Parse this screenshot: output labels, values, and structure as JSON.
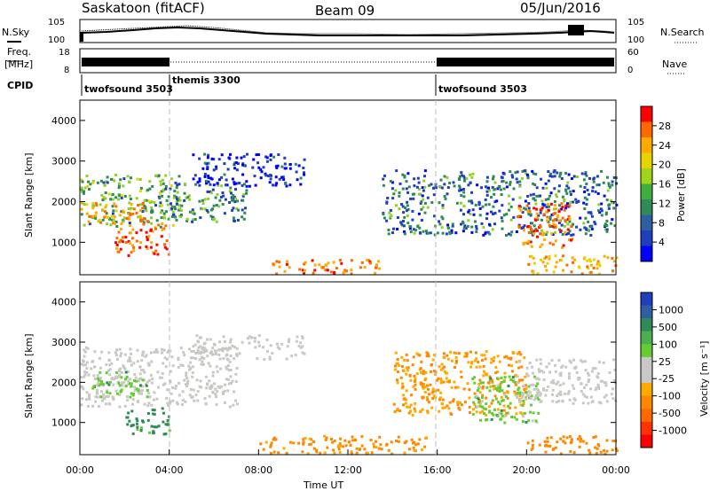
{
  "header": {
    "site": "Saskatoon (fitACF)",
    "beam": "Beam 09",
    "date": "05/Jun/2016"
  },
  "left_labels": {
    "nsky": "N.Sky",
    "freq_line1": "Freq.",
    "freq_line2": "[MHz]",
    "cpid": "CPID"
  },
  "right_labels": {
    "nsearch": "N.Search",
    "nave": "Nave"
  },
  "noise_panel": {
    "left_ticks": [
      "10^5",
      "10^0"
    ],
    "right_ticks": [
      "10^5",
      "10^0"
    ]
  },
  "freq_panel": {
    "left_ticks": [
      "18",
      "8"
    ],
    "right_ticks": [
      "60",
      "0"
    ]
  },
  "cpid_segments": [
    {
      "name": "twofsound 3503",
      "start_hour": 0,
      "end_hour": 4
    },
    {
      "name": "themis 3300",
      "start_hour": 4,
      "end_hour": 16
    },
    {
      "name": "twofsound 3503",
      "start_hour": 16,
      "end_hour": 24
    }
  ],
  "power_colorbar": {
    "label": "Power [dB]",
    "ticks": [
      "28",
      "24",
      "20",
      "16",
      "12",
      "8",
      "4"
    ],
    "colors": [
      "#ff0000",
      "#ff6a00",
      "#ffaa00",
      "#e6d400",
      "#9fd41a",
      "#3fae40",
      "#2e8b57",
      "#2f5fa0",
      "#1f3fbf",
      "#0000ff"
    ]
  },
  "velocity_colorbar": {
    "label": "Velocity [m s⁻¹]",
    "ticks": [
      "1000",
      "500",
      "100",
      "25",
      "-25",
      "-100",
      "-500",
      "-1000"
    ],
    "colors": [
      "#1f3fbf",
      "#2f5fa0",
      "#2e8b57",
      "#4caf50",
      "#66cc33",
      "#c8c8c4",
      "#c8c8c4",
      "#ffaa00",
      "#ff8800",
      "#ff6a00",
      "#ff3300",
      "#ff0000"
    ]
  },
  "chart_data": {
    "type": "heatmap",
    "title": "Saskatoon (fitACF)  Beam 09  05/Jun/2016",
    "xlabel": "Time UT",
    "x_ticks": [
      "00:00",
      "04:00",
      "08:00",
      "12:00",
      "16:00",
      "20:00",
      "00:00"
    ],
    "xlim_hours": [
      0,
      24
    ],
    "panels": [
      {
        "name": "power",
        "ylabel": "Slant Range [km]",
        "y_ticks": [
          1000,
          2000,
          3000,
          4000
        ],
        "ylim_km": [
          200,
          4500
        ],
        "colorbar_range_db": [
          0,
          30
        ],
        "regions": [
          {
            "t_start": 0.0,
            "t_end": 4.5,
            "r_low": 1400,
            "r_high": 2700,
            "power_db": 14
          },
          {
            "t_start": 0.0,
            "t_end": 3.0,
            "r_low": 1500,
            "r_high": 2000,
            "power_db": 25
          },
          {
            "t_start": 1.5,
            "t_end": 4.0,
            "r_low": 700,
            "r_high": 1500,
            "power_db": 29
          },
          {
            "t_start": 4.0,
            "t_end": 7.5,
            "r_low": 1500,
            "r_high": 2500,
            "power_db": 12
          },
          {
            "t_start": 5.0,
            "t_end": 10.0,
            "r_low": 2400,
            "r_high": 3200,
            "power_db": 6
          },
          {
            "t_start": 8.5,
            "t_end": 13.5,
            "r_low": 250,
            "r_high": 600,
            "power_db": 27
          },
          {
            "t_start": 13.5,
            "t_end": 24.0,
            "r_low": 1200,
            "r_high": 2800,
            "power_db": 10
          },
          {
            "t_start": 19.5,
            "t_end": 22.0,
            "r_low": 900,
            "r_high": 2000,
            "power_db": 27
          },
          {
            "t_start": 20.0,
            "t_end": 24.0,
            "r_low": 250,
            "r_high": 700,
            "power_db": 24
          }
        ]
      },
      {
        "name": "velocity",
        "ylabel": "Slant Range [km]",
        "y_ticks": [
          1000,
          2000,
          3000,
          4000
        ],
        "ylim_km": [
          200,
          4500
        ],
        "colorbar_range_ms": [
          -1000,
          1000
        ],
        "regions": [
          {
            "t_start": 0.0,
            "t_end": 7.0,
            "r_low": 1400,
            "r_high": 2900,
            "velocity_ms": 0
          },
          {
            "t_start": 0.5,
            "t_end": 3.0,
            "r_low": 1600,
            "r_high": 2300,
            "velocity_ms": 100
          },
          {
            "t_start": 2.0,
            "t_end": 4.0,
            "r_low": 700,
            "r_high": 1400,
            "velocity_ms": 200
          },
          {
            "t_start": 5.0,
            "t_end": 10.0,
            "r_low": 2600,
            "r_high": 3200,
            "velocity_ms": 0
          },
          {
            "t_start": 8.0,
            "t_end": 15.5,
            "r_low": 250,
            "r_high": 700,
            "velocity_ms": -200
          },
          {
            "t_start": 14.0,
            "t_end": 20.0,
            "r_low": 1200,
            "r_high": 2800,
            "velocity_ms": -150
          },
          {
            "t_start": 17.5,
            "t_end": 20.5,
            "r_low": 1000,
            "r_high": 2200,
            "velocity_ms": 100
          },
          {
            "t_start": 19.5,
            "t_end": 24.0,
            "r_low": 1500,
            "r_high": 2600,
            "velocity_ms": 0
          },
          {
            "t_start": 20.0,
            "t_end": 24.0,
            "r_low": 250,
            "r_high": 700,
            "velocity_ms": -300
          }
        ]
      }
    ]
  }
}
